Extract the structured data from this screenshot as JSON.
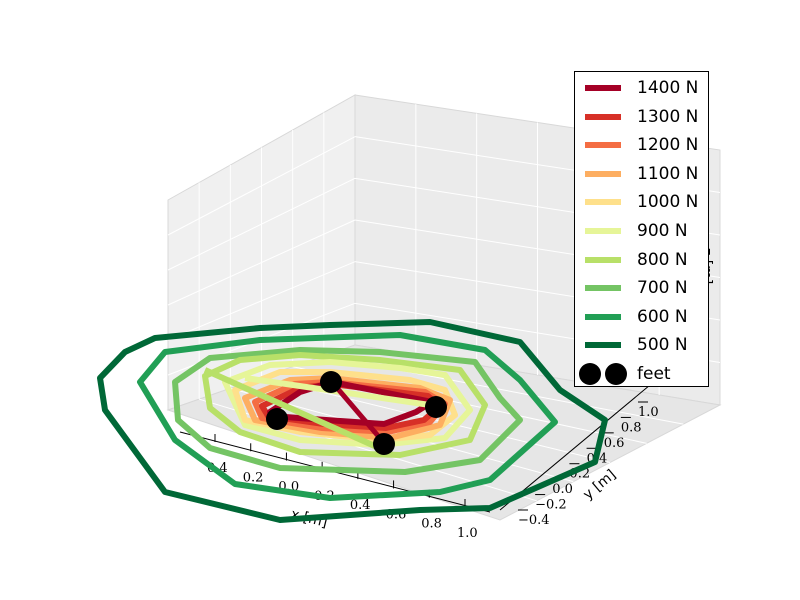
{
  "chart_data": {
    "type": "line",
    "projection": "3d",
    "title": "",
    "xlabel": "x [m]",
    "ylabel": "y [m]",
    "zlabel": "z [m]",
    "x_ticks": [
      "0.4",
      "0.2",
      "0.0",
      "0.2",
      "0.4",
      "0.6",
      "0.8",
      "1.0"
    ],
    "y_ticks": [
      "−0.4",
      "−0.2",
      "0.0",
      "0.2",
      "0.4",
      "0.6",
      "0.8",
      "1.0"
    ],
    "legend_position": "right",
    "series": [
      {
        "name": "1400 N",
        "color": "#a50026"
      },
      {
        "name": "1300 N",
        "color": "#d73027"
      },
      {
        "name": "1200 N",
        "color": "#f46d43"
      },
      {
        "name": "1100 N",
        "color": "#fdae61"
      },
      {
        "name": "1000 N",
        "color": "#fee08b"
      },
      {
        "name": "900 N",
        "color": "#e6f598"
      },
      {
        "name": "800 N",
        "color": "#b8e068"
      },
      {
        "name": "700 N",
        "color": "#74c464"
      },
      {
        "name": "600 N",
        "color": "#219f55"
      },
      {
        "name": "500 N",
        "color": "#006837"
      }
    ],
    "feet": {
      "name": "feet",
      "color": "#000000",
      "count": 4
    }
  }
}
